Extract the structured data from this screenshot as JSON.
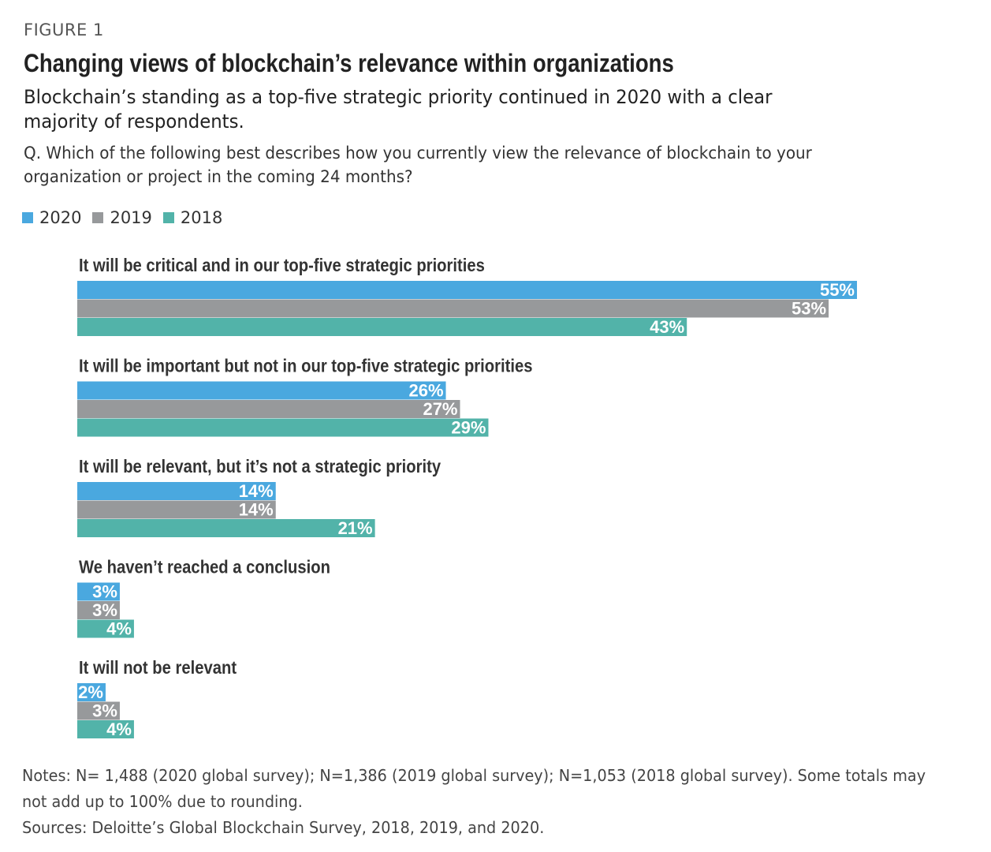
{
  "header": {
    "figure_label": "FIGURE 1"
  },
  "chart_data": {
    "type": "bar",
    "orientation": "horizontal",
    "title": "Changing views of blockchain’s relevance within organizations",
    "subtitle": "Blockchain’s standing as a top-five strategic priority continued in 2020 with a clear majority of respondents.",
    "question": "Q. Which of the following best describes how you currently view the relevance of blockchain to your organization or project in the coming 24 months?",
    "categories": [
      "It will be critical and in our top-five strategic priorities",
      "It will be important but not in our top-five strategic priorities",
      "It will be relevant, but it’s not a strategic priority",
      "We haven’t reached a conclusion",
      "It will not be relevant"
    ],
    "series": [
      {
        "name": "2020",
        "color": "#4aa8df",
        "values": [
          55,
          26,
          14,
          3,
          2
        ]
      },
      {
        "name": "2019",
        "color": "#97999b",
        "values": [
          53,
          27,
          14,
          3,
          3
        ]
      },
      {
        "name": "2018",
        "color": "#52b3a9",
        "values": [
          43,
          29,
          21,
          4,
          4
        ]
      }
    ],
    "value_suffix": "%",
    "xlim": [
      0,
      55
    ],
    "grid": false,
    "legend_position": "top-left"
  },
  "footer": {
    "notes": "Notes: N= 1,488 (2020 global survey); N=1,386 (2019 global survey); N=1,053 (2018 global survey). Some totals may not add up to 100% due to rounding.",
    "sources": "Sources: Deloitte’s Global Blockchain Survey, 2018, 2019, and 2020."
  }
}
